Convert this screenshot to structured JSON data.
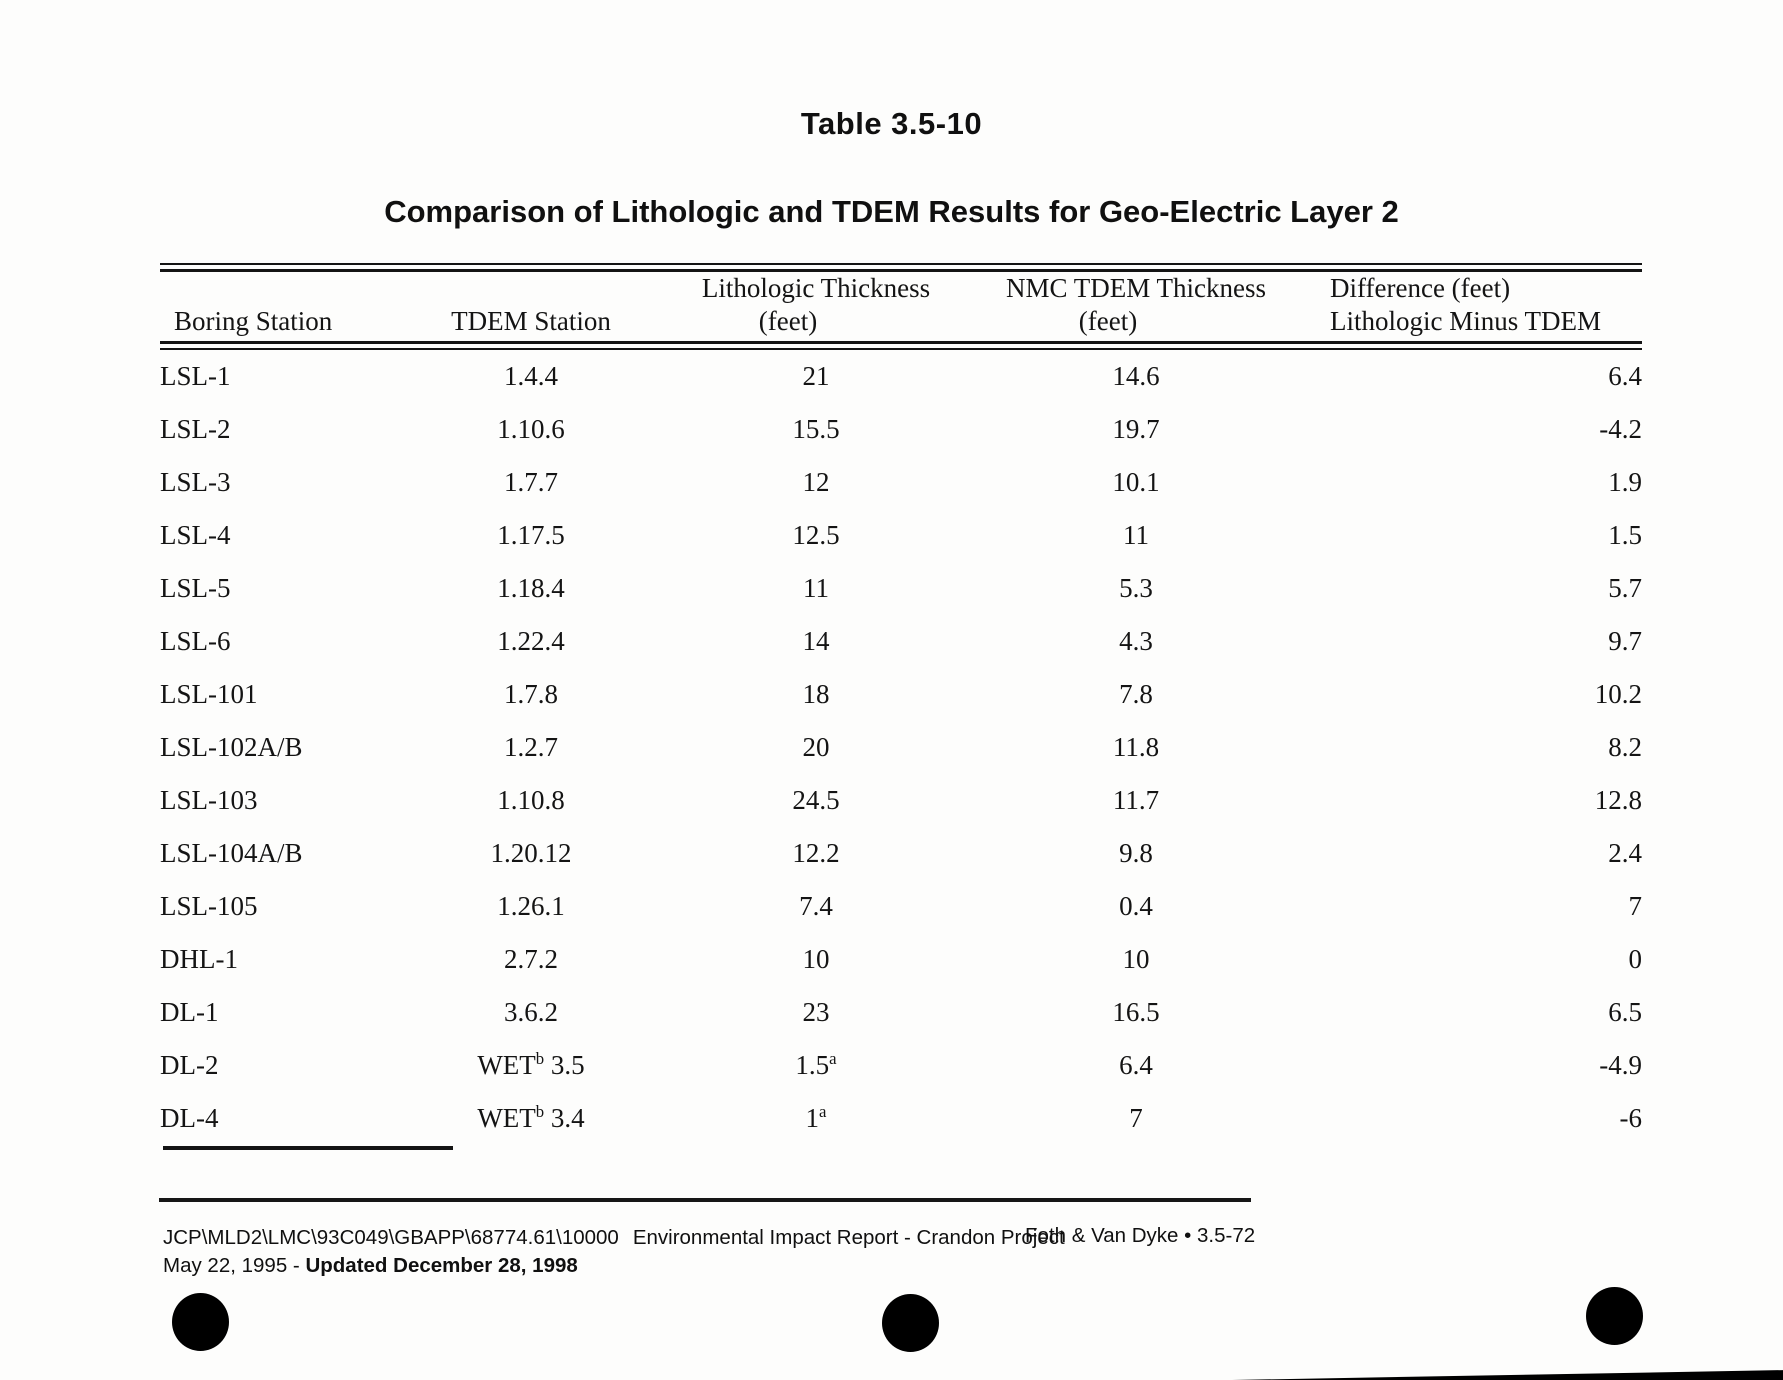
{
  "doc": {
    "table_number": "Table 3.5-10",
    "title": "Comparison of Lithologic and TDEM Results for Geo-Electric Layer 2"
  },
  "table": {
    "columns": [
      {
        "label": "Boring Station",
        "sub": ""
      },
      {
        "label": "TDEM Station",
        "sub": ""
      },
      {
        "label": "Lithologic Thickness",
        "sub": "(feet)"
      },
      {
        "label": "NMC TDEM Thickness",
        "sub": "(feet)"
      },
      {
        "label": "Difference (feet)",
        "sub": "Lithologic Minus TDEM"
      }
    ],
    "rows": [
      [
        "LSL-1",
        "1.4.4",
        "21",
        "14.6",
        "6.4"
      ],
      [
        "LSL-2",
        "1.10.6",
        "15.5",
        "19.7",
        "-4.2"
      ],
      [
        "LSL-3",
        "1.7.7",
        "12",
        "10.1",
        "1.9"
      ],
      [
        "LSL-4",
        "1.17.5",
        "12.5",
        "11",
        "1.5"
      ],
      [
        "LSL-5",
        "1.18.4",
        "11",
        "5.3",
        "5.7"
      ],
      [
        "LSL-6",
        "1.22.4",
        "14",
        "4.3",
        "9.7"
      ],
      [
        "LSL-101",
        "1.7.8",
        "18",
        "7.8",
        "10.2"
      ],
      [
        "LSL-102A/B",
        "1.2.7",
        "20",
        "11.8",
        "8.2"
      ],
      [
        "LSL-103",
        "1.10.8",
        "24.5",
        "11.7",
        "12.8"
      ],
      [
        "LSL-104A/B",
        "1.20.12",
        "12.2",
        "9.8",
        "2.4"
      ],
      [
        "LSL-105",
        "1.26.1",
        "7.4",
        "0.4",
        "7"
      ],
      [
        "DHL-1",
        "2.7.2",
        "10",
        "10",
        "0"
      ],
      [
        "DL-1",
        "3.6.2",
        "23",
        "16.5",
        "6.5"
      ],
      [
        "DL-2",
        "WET^b^ 3.5",
        "1.5^a^",
        "6.4",
        "-4.9"
      ],
      [
        "DL-4",
        "WET^b^ 3.4",
        "1^a^",
        "7",
        "-6"
      ]
    ]
  },
  "footer": {
    "doc_ref": "JCP\\MLD2\\LMC\\93C049\\GBAPP\\68774.61\\10000",
    "doc_title": "Environmental Impact Report - Crandon Project",
    "date_normal": "May 22, 1995 - ",
    "date_bold": "Updated December 28, 1998",
    "page_ref": "Foth & Van Dyke • 3.5-72"
  },
  "colors": {
    "ink": "#141414",
    "paper": "#fdfdfc",
    "scan_mark": "#000000"
  }
}
